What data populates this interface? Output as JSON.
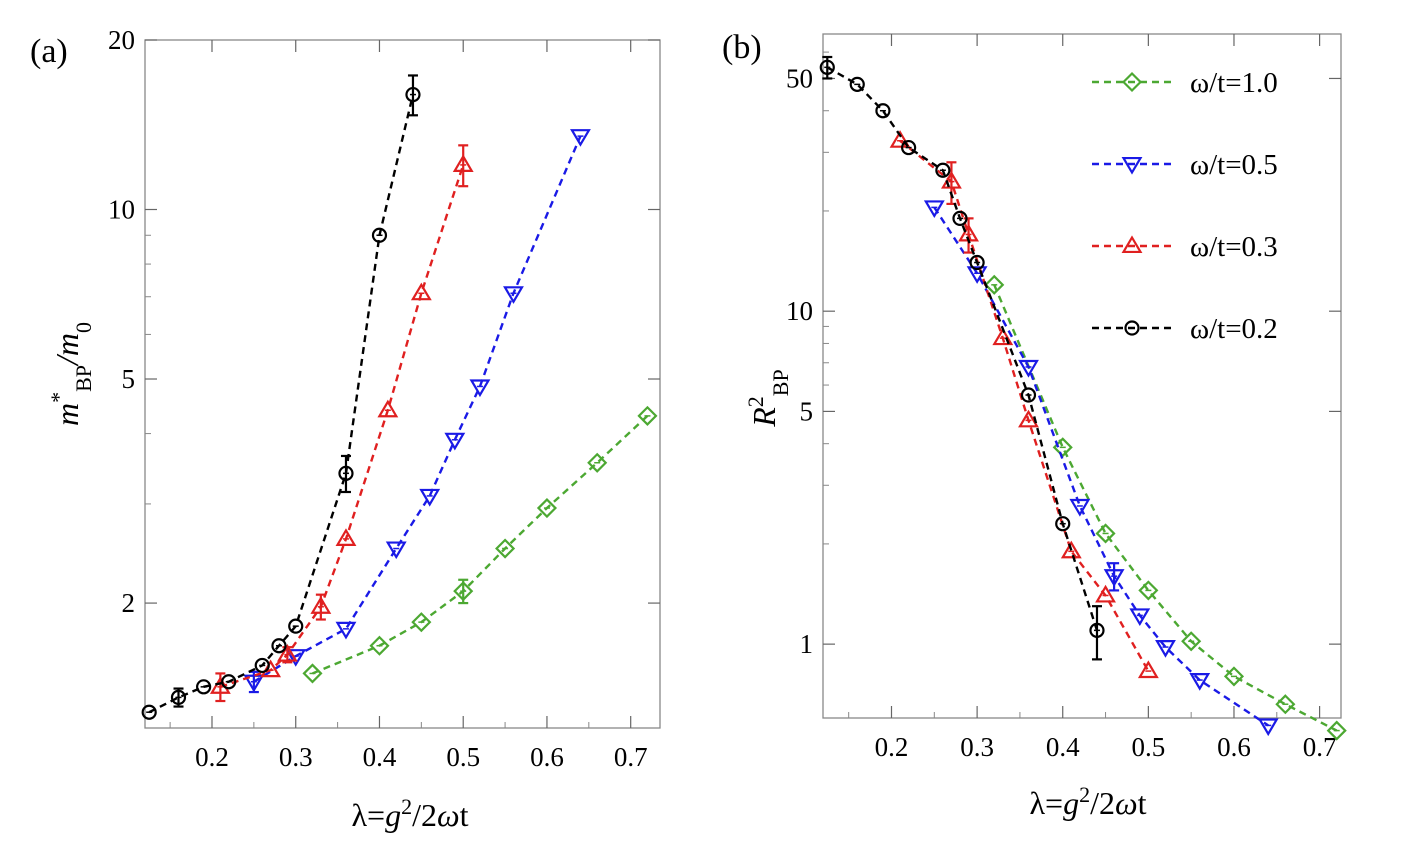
{
  "chart_data": [
    {
      "type": "line",
      "panel_label": "(a)",
      "xlabel": "λ=g²/2ωt",
      "ylabel": "m*BP/m0",
      "xlim": [
        0.12,
        0.735
      ],
      "ylim": [
        1.2,
        20
      ],
      "yscale": "log",
      "x_ticks": [
        "0.2",
        "0.3",
        "0.4",
        "0.5",
        "0.6",
        "0.7"
      ],
      "y_ticks": [
        "2",
        "5",
        "10",
        "20"
      ],
      "series": [
        {
          "name": "ω/t=1.0",
          "color": "#4ca832",
          "marker": "diamond",
          "points": [
            {
              "x": 0.32,
              "y": 1.5
            },
            {
              "x": 0.4,
              "y": 1.68
            },
            {
              "x": 0.45,
              "y": 1.85
            },
            {
              "x": 0.5,
              "y": 2.1,
              "err": 0.1
            },
            {
              "x": 0.55,
              "y": 2.5
            },
            {
              "x": 0.6,
              "y": 2.95
            },
            {
              "x": 0.66,
              "y": 3.55
            },
            {
              "x": 0.72,
              "y": 4.3
            }
          ]
        },
        {
          "name": "ω/t=0.5",
          "color": "#1a1ae6",
          "marker": "triangle-down",
          "points": [
            {
              "x": 0.25,
              "y": 1.45,
              "err": 0.06
            },
            {
              "x": 0.3,
              "y": 1.61
            },
            {
              "x": 0.36,
              "y": 1.8
            },
            {
              "x": 0.42,
              "y": 2.5
            },
            {
              "x": 0.46,
              "y": 3.1
            },
            {
              "x": 0.49,
              "y": 3.9
            },
            {
              "x": 0.52,
              "y": 4.85
            },
            {
              "x": 0.56,
              "y": 7.1
            },
            {
              "x": 0.64,
              "y": 13.5
            }
          ]
        },
        {
          "name": "ω/t=0.3",
          "color": "#e02020",
          "marker": "triangle-up",
          "points": [
            {
              "x": 0.21,
              "y": 1.42,
              "err": 0.08
            },
            {
              "x": 0.27,
              "y": 1.52
            },
            {
              "x": 0.29,
              "y": 1.62,
              "err": 0.05
            },
            {
              "x": 0.33,
              "y": 1.97,
              "err": 0.1
            },
            {
              "x": 0.36,
              "y": 2.6
            },
            {
              "x": 0.41,
              "y": 4.4
            },
            {
              "x": 0.45,
              "y": 7.1
            },
            {
              "x": 0.5,
              "y": 12.0,
              "err": 1.0
            }
          ]
        },
        {
          "name": "ω/t=0.2",
          "color": "#000000",
          "marker": "circle",
          "points": [
            {
              "x": 0.125,
              "y": 1.28
            },
            {
              "x": 0.16,
              "y": 1.36,
              "err": 0.05
            },
            {
              "x": 0.19,
              "y": 1.42
            },
            {
              "x": 0.22,
              "y": 1.45
            },
            {
              "x": 0.26,
              "y": 1.55
            },
            {
              "x": 0.28,
              "y": 1.68
            },
            {
              "x": 0.3,
              "y": 1.82
            },
            {
              "x": 0.36,
              "y": 3.4,
              "err": 0.25
            },
            {
              "x": 0.4,
              "y": 9.0
            },
            {
              "x": 0.44,
              "y": 16.0,
              "err": 1.3
            }
          ]
        }
      ]
    },
    {
      "type": "line",
      "panel_label": "(b)",
      "xlabel": "λ=g²/2ωt",
      "ylabel": "R²BP",
      "xlim": [
        0.12,
        0.725
      ],
      "ylim": [
        0.6,
        68
      ],
      "yscale": "log",
      "x_ticks": [
        "0.2",
        "0.3",
        "0.4",
        "0.5",
        "0.6",
        "0.7"
      ],
      "y_ticks": [
        "1",
        "5",
        "10",
        "50"
      ],
      "legend_position": "top-right",
      "series": [
        {
          "name": "ω/t=1.0",
          "color": "#4ca832",
          "marker": "diamond",
          "points": [
            {
              "x": 0.32,
              "y": 12.0
            },
            {
              "x": 0.4,
              "y": 3.9
            },
            {
              "x": 0.45,
              "y": 2.15
            },
            {
              "x": 0.5,
              "y": 1.45
            },
            {
              "x": 0.55,
              "y": 1.02
            },
            {
              "x": 0.6,
              "y": 0.8
            },
            {
              "x": 0.66,
              "y": 0.66
            },
            {
              "x": 0.72,
              "y": 0.55
            }
          ]
        },
        {
          "name": "ω/t=0.5",
          "color": "#1a1ae6",
          "marker": "triangle-down",
          "points": [
            {
              "x": 0.25,
              "y": 20.5
            },
            {
              "x": 0.3,
              "y": 13.0
            },
            {
              "x": 0.36,
              "y": 6.8
            },
            {
              "x": 0.42,
              "y": 2.6
            },
            {
              "x": 0.46,
              "y": 1.6,
              "err": 0.15
            },
            {
              "x": 0.49,
              "y": 1.22
            },
            {
              "x": 0.52,
              "y": 0.98
            },
            {
              "x": 0.56,
              "y": 0.78
            },
            {
              "x": 0.64,
              "y": 0.57
            }
          ]
        },
        {
          "name": "ω/t=0.3",
          "color": "#e02020",
          "marker": "triangle-up",
          "points": [
            {
              "x": 0.21,
              "y": 32.5
            },
            {
              "x": 0.27,
              "y": 24.5,
              "err": 3.5
            },
            {
              "x": 0.29,
              "y": 17.0,
              "err": 2.0
            },
            {
              "x": 0.33,
              "y": 8.3
            },
            {
              "x": 0.36,
              "y": 4.7
            },
            {
              "x": 0.41,
              "y": 1.9
            },
            {
              "x": 0.45,
              "y": 1.4
            },
            {
              "x": 0.5,
              "y": 0.83
            }
          ]
        },
        {
          "name": "ω/t=0.2",
          "color": "#000000",
          "marker": "circle",
          "points": [
            {
              "x": 0.125,
              "y": 54.0,
              "err": 4.0
            },
            {
              "x": 0.16,
              "y": 48.0
            },
            {
              "x": 0.19,
              "y": 40.0
            },
            {
              "x": 0.22,
              "y": 31.0
            },
            {
              "x": 0.26,
              "y": 26.5
            },
            {
              "x": 0.28,
              "y": 19.0
            },
            {
              "x": 0.3,
              "y": 14.0
            },
            {
              "x": 0.36,
              "y": 5.6
            },
            {
              "x": 0.4,
              "y": 2.3
            },
            {
              "x": 0.44,
              "y": 1.1,
              "err": 0.2
            }
          ]
        }
      ]
    }
  ]
}
